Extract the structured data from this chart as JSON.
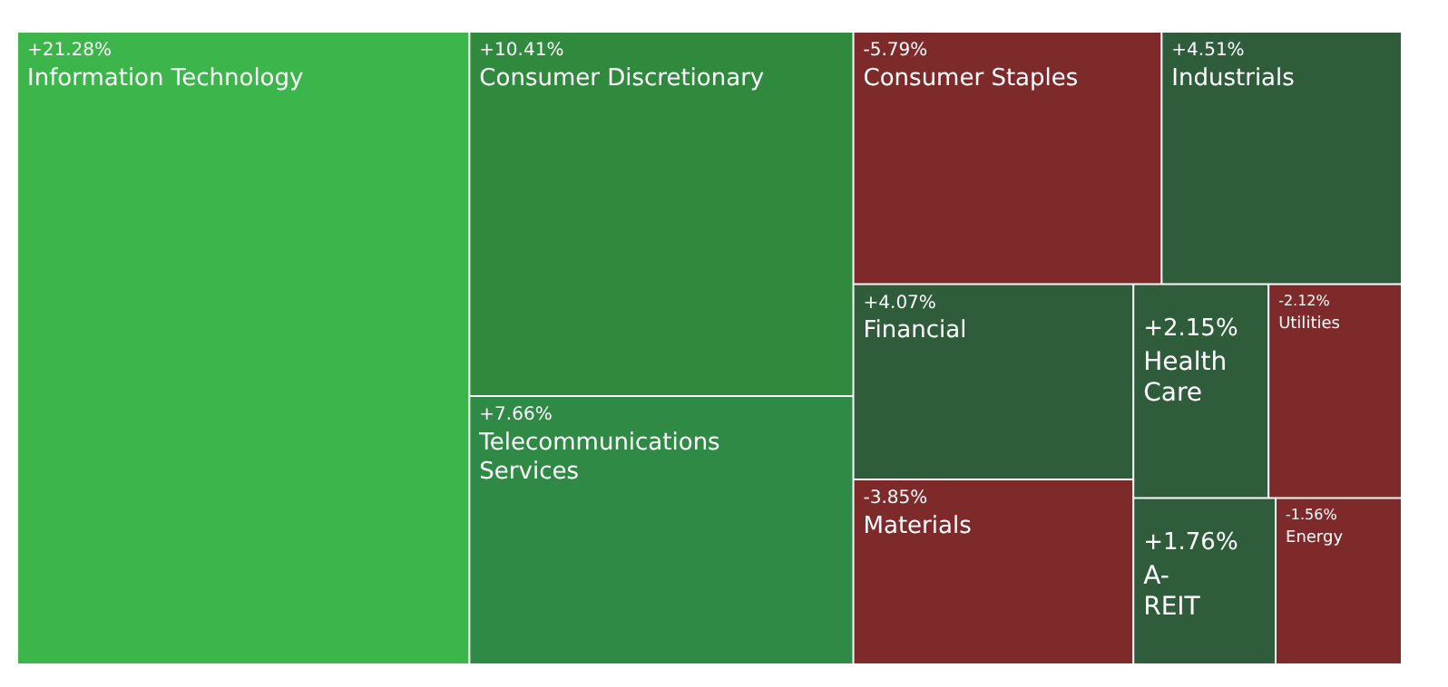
{
  "chart_data": {
    "type": "other",
    "categories": [
      "Information Technology",
      "Consumer Discretionary",
      "Telecommunications Services",
      "Consumer Staples",
      "Industrials",
      "Financial",
      "Materials",
      "Health Care",
      "Utilities",
      "A-REIT",
      "Energy"
    ],
    "values": [
      21.28,
      10.41,
      7.66,
      -5.79,
      4.51,
      4.07,
      -3.85,
      2.15,
      -2.12,
      1.76,
      -1.56
    ],
    "value_labels": [
      "+21.28%",
      "+10.41%",
      "+7.66%",
      "-5.79%",
      "+4.51%",
      "+4.07%",
      "-3.85%",
      "+2.15%",
      "-2.12%",
      "+1.76%",
      "-1.56%"
    ],
    "colors": [
      "#3cb54b",
      "#2f8a3e",
      "#2f8a45",
      "#7f2a2a",
      "#2f5c3a",
      "#2f5c3a",
      "#7f2a2a",
      "#2f5c3a",
      "#7f2a2a",
      "#2f5c3a",
      "#7f2a2a"
    ]
  }
}
